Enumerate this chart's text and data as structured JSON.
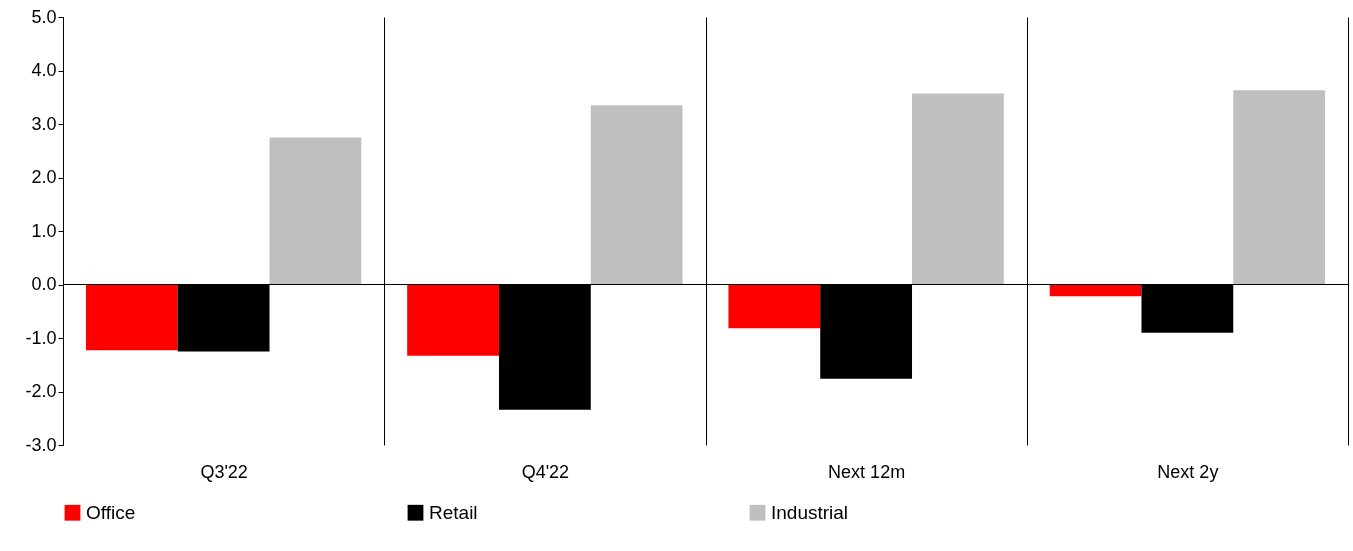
{
  "chart_data": {
    "type": "bar",
    "categories": [
      "Q3'22",
      "Q4'22",
      "Next 12m",
      "Next 2y"
    ],
    "series": [
      {
        "name": "Office",
        "color": "#ff0000",
        "values": [
          -1.23,
          -1.33,
          -0.82,
          -0.22
        ]
      },
      {
        "name": "Retail",
        "color": "#000000",
        "values": [
          -1.25,
          -2.34,
          -1.76,
          -0.9
        ]
      },
      {
        "name": "Industrial",
        "color": "#bfbfbf",
        "values": [
          2.75,
          3.35,
          3.57,
          3.63
        ]
      }
    ],
    "ylim": [
      -3,
      5
    ],
    "yticks": [
      {
        "value": -3,
        "label": "-3.0"
      },
      {
        "value": -2,
        "label": "-2.0"
      },
      {
        "value": -1,
        "label": "-1.0"
      },
      {
        "value": 0,
        "label": "0.0"
      },
      {
        "value": 1,
        "label": "1.0"
      },
      {
        "value": 2,
        "label": "2.0"
      },
      {
        "value": 3,
        "label": "3.0"
      },
      {
        "value": 4,
        "label": "4.0"
      },
      {
        "value": 5,
        "label": "5.0"
      }
    ],
    "grid": "x",
    "ref_lines": [
      {
        "axis": "y",
        "value": 0,
        "color": "#000000"
      }
    ],
    "legend": "bottom"
  }
}
